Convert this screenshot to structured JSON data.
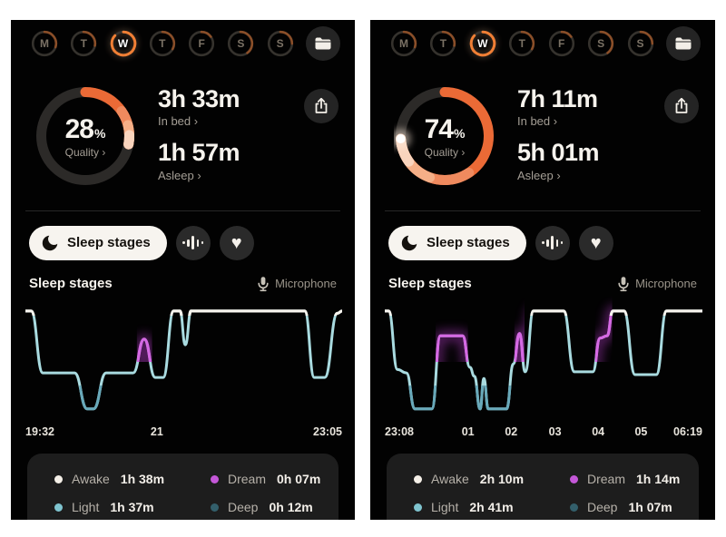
{
  "week": {
    "days": [
      {
        "label": "M",
        "score": 0.3,
        "active": false
      },
      {
        "label": "T",
        "score": 0.28,
        "active": false
      },
      {
        "label": "W",
        "score": 0.87,
        "active": true
      },
      {
        "label": "T",
        "score": 0.33,
        "active": false
      },
      {
        "label": "F",
        "score": 0.15,
        "active": false
      },
      {
        "label": "S",
        "score": 0.4,
        "active": false
      },
      {
        "label": "S",
        "score": 0.25,
        "active": false
      }
    ]
  },
  "colors": {
    "accent_orange": "#eb6a36",
    "ring_track": "#2c2a28",
    "ring_tints": [
      "#ef8a5e",
      "#f5af87",
      "#f9d4bd"
    ],
    "day_track": "#35322d",
    "day_arc": "#8a4e28",
    "day_arc_active": "#f07f35",
    "line_light": "#a9dbe0",
    "line_deep": "#68a9ba",
    "line_dream": "#d569e3",
    "dream_glow": "#bf3fd4",
    "line_awake": "#f7f4ee",
    "legend_card": "#1d1d1d"
  },
  "panels": [
    {
      "summary": {
        "quality_pct": 28,
        "quality_unit": "%",
        "quality_label": "Quality ›",
        "in_bed": "3h 33m",
        "in_bed_label": "In bed ›",
        "asleep": "1h 57m",
        "asleep_label": "Asleep ›"
      },
      "controls": {
        "sleep_stages_label": "Sleep stages"
      },
      "section": {
        "title": "Sleep stages",
        "mic_label": "Microphone"
      },
      "legend": [
        {
          "label": "Awake",
          "value": "1h 38m",
          "color": "#f4efe7"
        },
        {
          "label": "Dream",
          "value": "0h 07m",
          "color": "#c457d8"
        },
        {
          "label": "Light",
          "value": "1h 37m",
          "color": "#7fc4cf"
        },
        {
          "label": "Deep",
          "value": "0h 12m",
          "color": "#335f6b"
        }
      ]
    },
    {
      "summary": {
        "quality_pct": 74,
        "quality_unit": "%",
        "quality_label": "Quality ›",
        "in_bed": "7h 11m",
        "in_bed_label": "In bed ›",
        "asleep": "5h 01m",
        "asleep_label": "Asleep ›"
      },
      "controls": {
        "sleep_stages_label": "Sleep stages"
      },
      "section": {
        "title": "Sleep stages",
        "mic_label": "Microphone"
      },
      "legend": [
        {
          "label": "Awake",
          "value": "2h 10m",
          "color": "#f4efe7"
        },
        {
          "label": "Dream",
          "value": "1h 14m",
          "color": "#c457d8"
        },
        {
          "label": "Light",
          "value": "2h 41m",
          "color": "#7fc4cf"
        },
        {
          "label": "Deep",
          "value": "1h 07m",
          "color": "#335f6b"
        }
      ]
    }
  ],
  "chart_data": [
    {
      "panel": "left",
      "type": "line",
      "title": "Sleep stages",
      "x_axis": {
        "start": "19:32",
        "end": "23:05"
      },
      "x_labels": [
        {
          "text": "19:32",
          "pos": 0
        },
        {
          "text": "21",
          "pos": 0.415
        },
        {
          "text": "23:05",
          "pos": 1
        }
      ],
      "stage_levels": {
        "awake": 0.08,
        "dream": 0.33,
        "light": 0.63,
        "deep": 0.95
      },
      "points": [
        [
          0,
          0.08
        ],
        [
          0.018,
          0.08
        ],
        [
          0.055,
          0.63
        ],
        [
          0.155,
          0.63
        ],
        [
          0.195,
          0.95
        ],
        [
          0.215,
          0.95
        ],
        [
          0.255,
          0.63
        ],
        [
          0.34,
          0.63
        ],
        [
          0.375,
          0.33
        ],
        [
          0.41,
          0.67
        ],
        [
          0.435,
          0.67
        ],
        [
          0.468,
          0.08
        ],
        [
          0.488,
          0.08
        ],
        [
          0.505,
          0.38
        ],
        [
          0.523,
          0.08
        ],
        [
          0.882,
          0.08
        ],
        [
          0.912,
          0.67
        ],
        [
          0.945,
          0.67
        ],
        [
          0.985,
          0.1
        ],
        [
          1,
          0.08
        ]
      ],
      "dream_ranges": [
        [
          0.352,
          0.4
        ]
      ],
      "deep_ranges": [
        [
          0.17,
          0.26
        ]
      ],
      "durations": {
        "awake": "1h 38m",
        "dream": "0h 07m",
        "light": "1h 37m",
        "deep": "0h 12m"
      }
    },
    {
      "panel": "right",
      "type": "line",
      "title": "Sleep stages",
      "x_axis": {
        "start": "23:08",
        "end": "06:19"
      },
      "x_labels": [
        {
          "text": "23:08",
          "pos": 0
        },
        {
          "text": "01",
          "pos": 0.262
        },
        {
          "text": "02",
          "pos": 0.398
        },
        {
          "text": "03",
          "pos": 0.536
        },
        {
          "text": "04",
          "pos": 0.672
        },
        {
          "text": "05",
          "pos": 0.807
        },
        {
          "text": "06:19",
          "pos": 1
        }
      ],
      "stage_levels": {
        "awake": 0.08,
        "dream": 0.33,
        "light": 0.63,
        "deep": 0.95
      },
      "points": [
        [
          0,
          0.08
        ],
        [
          0.012,
          0.08
        ],
        [
          0.04,
          0.6
        ],
        [
          0.068,
          0.63
        ],
        [
          0.095,
          0.95
        ],
        [
          0.148,
          0.95
        ],
        [
          0.175,
          0.3
        ],
        [
          0.245,
          0.3
        ],
        [
          0.268,
          0.58
        ],
        [
          0.282,
          0.66
        ],
        [
          0.3,
          0.95
        ],
        [
          0.312,
          0.68
        ],
        [
          0.326,
          0.95
        ],
        [
          0.383,
          0.95
        ],
        [
          0.405,
          0.55
        ],
        [
          0.424,
          0.28
        ],
        [
          0.442,
          0.62
        ],
        [
          0.468,
          0.08
        ],
        [
          0.563,
          0.08
        ],
        [
          0.597,
          0.62
        ],
        [
          0.655,
          0.62
        ],
        [
          0.678,
          0.32
        ],
        [
          0.7,
          0.3
        ],
        [
          0.718,
          0.08
        ],
        [
          0.753,
          0.08
        ],
        [
          0.788,
          0.645
        ],
        [
          0.855,
          0.645
        ],
        [
          0.887,
          0.08
        ],
        [
          1,
          0.08
        ]
      ],
      "dream_ranges": [
        [
          0.16,
          0.262
        ],
        [
          0.408,
          0.44
        ],
        [
          0.662,
          0.716
        ]
      ],
      "deep_ranges": [
        [
          0.075,
          0.165
        ],
        [
          0.275,
          0.4
        ]
      ],
      "durations": {
        "awake": "2h 10m",
        "dream": "1h 14m",
        "light": "2h 41m",
        "deep": "1h 07m"
      }
    }
  ]
}
